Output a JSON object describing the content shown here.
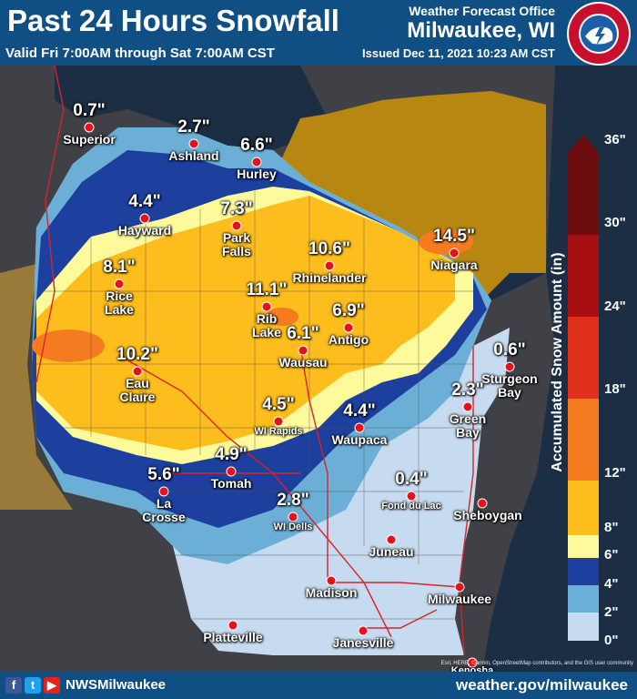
{
  "header": {
    "title": "Past 24 Hours Snowfall",
    "valid": "Valid Fri 7:00AM through Sat 7:00AM CST",
    "office": "Weather Forecast Office",
    "office_city": "Milwaukee, WI",
    "issued": "Issued Dec 11, 2021 10:23 AM CST",
    "logo_text": "NATIONAL WEATHER SERVICE"
  },
  "legend": {
    "title": "Accumulated Snow Amount (in)",
    "ticks": [
      "36\"",
      "30\"",
      "24\"",
      "18\"",
      "12\"",
      "8\"",
      "6\"",
      "4\"",
      "2\"",
      "0\""
    ],
    "colors": {
      "0-2": "#c6dbef",
      "2-4": "#6baed6",
      "4-6": "#1d3f9e",
      "6-8": "#fdfa9c",
      "8-12": "#fdbd1c",
      "12-18": "#f47b20",
      "18-24": "#e1301c",
      "24-30": "#a80f10",
      "30-36": "#6d0c0e"
    }
  },
  "stations": [
    {
      "amount": "0.7\"",
      "city": "Superior"
    },
    {
      "amount": "2.7\"",
      "city": "Ashland"
    },
    {
      "amount": "6.6\"",
      "city": "Hurley"
    },
    {
      "amount": "4.4\"",
      "city": "Hayward"
    },
    {
      "amount": "7.3\"",
      "city": "Park\nFalls"
    },
    {
      "amount": "10.6\"",
      "city": "Rhinelander"
    },
    {
      "amount": "14.5\"",
      "city": "Niagara"
    },
    {
      "amount": "8.1\"",
      "city": "Rice\nLake"
    },
    {
      "amount": "11.1\"",
      "city": "Rib\nLake"
    },
    {
      "amount": "6.9\"",
      "city": "Antigo"
    },
    {
      "amount": "6.1\"",
      "city": "Wausau"
    },
    {
      "amount": "0.6\"",
      "city": "Sturgeon\nBay"
    },
    {
      "amount": "10.2\"",
      "city": "Eau\nClaire"
    },
    {
      "amount": "4.5\"",
      "city": "WI Rapids"
    },
    {
      "amount": "4.4\"",
      "city": "Waupaca"
    },
    {
      "amount": "2.3\"",
      "city": "Green\nBay"
    },
    {
      "amount": "5.6\"",
      "city": "La\nCrosse"
    },
    {
      "amount": "4.9\"",
      "city": "Tomah"
    },
    {
      "amount": "0.4\"",
      "city": "Fond du Lac"
    },
    {
      "amount": "2.8\"",
      "city": "WI Dells"
    }
  ],
  "cities": [
    "Sheboygan",
    "Juneau",
    "Madison",
    "Milwaukee",
    "Platteville",
    "Janesville",
    "Kenosha"
  ],
  "credit": "Esri, HERE, Garmin, OpenStreetMap contributors, and the GIS user community",
  "footer": {
    "social_icons": [
      "facebook-icon",
      "twitter-icon",
      "youtube-icon"
    ],
    "handle": "NWSMilwaukee",
    "site": "weather.gov/milwaukee"
  }
}
